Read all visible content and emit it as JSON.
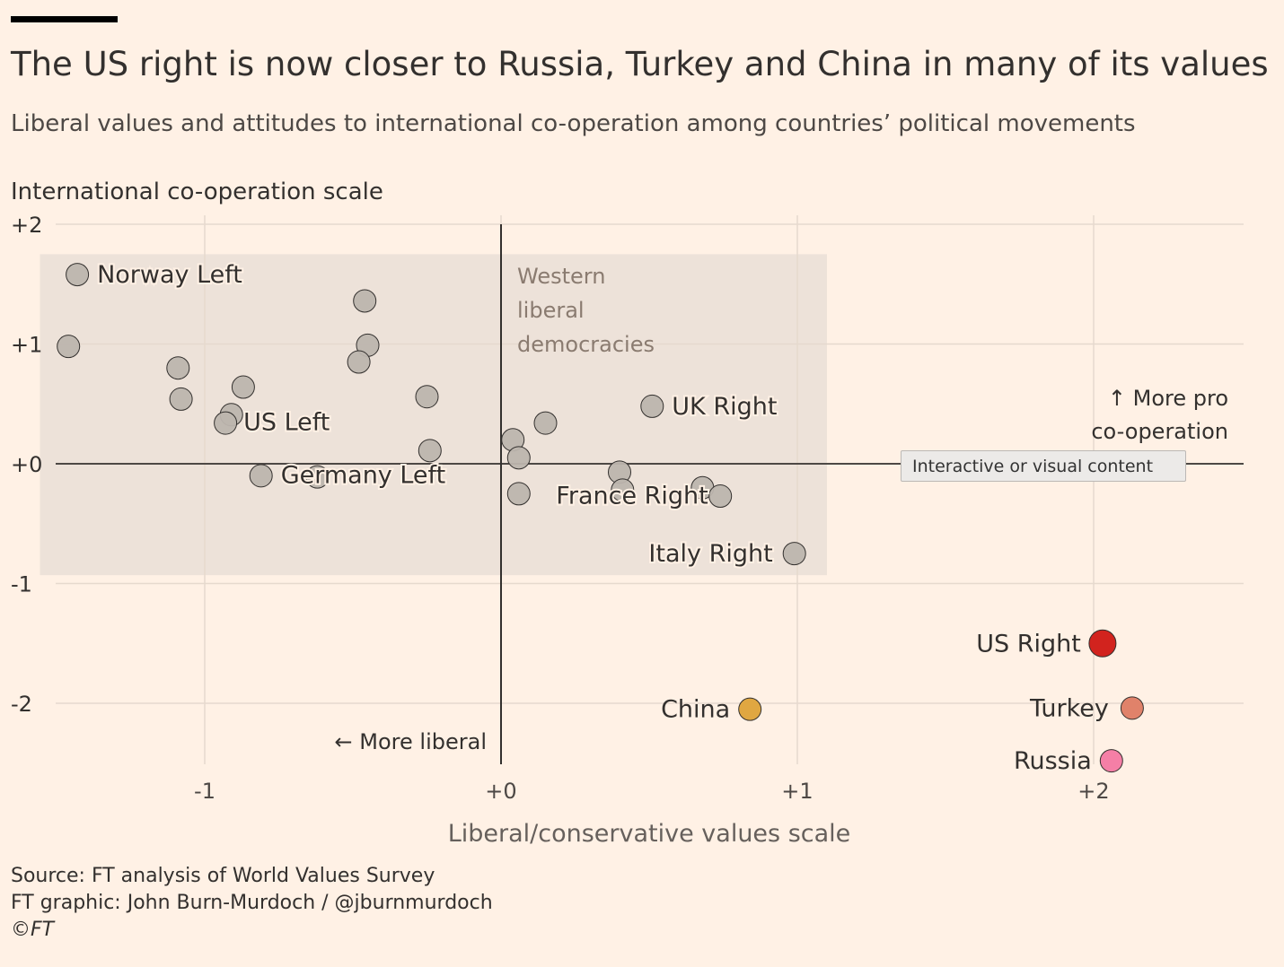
{
  "header": {
    "title": "The US right is now closer to Russia, Turkey and China in many of its values",
    "subtitle": "Liberal values and attitudes to international co-operation among countries’ political movements"
  },
  "tooltip": {
    "label": "Interactive or visual content"
  },
  "footer": {
    "source": "Source: FT analysis of World Values Survey",
    "graphic": "FT graphic: John Burn-Murdoch / @jburnmurdoch",
    "copyright": "©FT"
  },
  "chart_data": {
    "type": "scatter",
    "title": "The US right is now closer to Russia, Turkey and China in many of its values",
    "xlabel": "Liberal/conservative values scale",
    "ylabel": "International co-operation scale",
    "xlim": [
      -1.5,
      2.5
    ],
    "ylim": [
      -2.5,
      2
    ],
    "x_ticks": [
      {
        "value": -1,
        "label": "-1"
      },
      {
        "value": 0,
        "label": "+0"
      },
      {
        "value": 1,
        "label": "+1"
      },
      {
        "value": 2,
        "label": "+2"
      }
    ],
    "y_ticks": [
      {
        "value": 2,
        "label": "+2"
      },
      {
        "value": 1,
        "label": "+1"
      },
      {
        "value": 0,
        "label": "+0"
      },
      {
        "value": -1,
        "label": "-1"
      },
      {
        "value": -2,
        "label": "-2"
      }
    ],
    "grid": true,
    "colors": {
      "background": "#fff1e5",
      "grey_dot": "#bdb5ae",
      "us_right": "#d2231e",
      "turkey": "#e0826a",
      "russia": "#f57fa6",
      "china": "#e0a741",
      "shaded_region": "#ede2d9"
    },
    "region": {
      "label_lines": [
        "Western",
        "liberal",
        "democracies"
      ],
      "x_range": [
        -1.55,
        1.1
      ],
      "y_range": [
        -0.93,
        1.75
      ]
    },
    "annotations": {
      "more_liberal": "← More liberal",
      "more_coop_lines": [
        "↑ More pro",
        "co-operation"
      ]
    },
    "points": [
      {
        "x": -1.43,
        "y": 1.58,
        "label": "Norway Left",
        "color": "grey"
      },
      {
        "x": -1.46,
        "y": 0.98,
        "label": "",
        "color": "grey"
      },
      {
        "x": -1.09,
        "y": 0.8,
        "label": "",
        "color": "grey"
      },
      {
        "x": -1.08,
        "y": 0.54,
        "label": "",
        "color": "grey"
      },
      {
        "x": -0.87,
        "y": 0.64,
        "label": "",
        "color": "grey"
      },
      {
        "x": -0.91,
        "y": 0.41,
        "label": "",
        "color": "grey"
      },
      {
        "x": -0.93,
        "y": 0.34,
        "label": "US Left",
        "color": "grey"
      },
      {
        "x": -0.81,
        "y": -0.1,
        "label": "Germany Left",
        "color": "grey"
      },
      {
        "x": -0.62,
        "y": -0.11,
        "label": "",
        "color": "grey"
      },
      {
        "x": -0.46,
        "y": 1.36,
        "label": "",
        "color": "grey"
      },
      {
        "x": -0.45,
        "y": 0.99,
        "label": "",
        "color": "grey"
      },
      {
        "x": -0.48,
        "y": 0.85,
        "label": "",
        "color": "grey"
      },
      {
        "x": -0.25,
        "y": 0.56,
        "label": "",
        "color": "grey"
      },
      {
        "x": -0.24,
        "y": 0.11,
        "label": "",
        "color": "grey"
      },
      {
        "x": 0.04,
        "y": 0.2,
        "label": "",
        "color": "grey"
      },
      {
        "x": 0.06,
        "y": 0.05,
        "label": "",
        "color": "grey"
      },
      {
        "x": 0.06,
        "y": -0.25,
        "label": "",
        "color": "grey"
      },
      {
        "x": 0.15,
        "y": 0.34,
        "label": "",
        "color": "grey"
      },
      {
        "x": 0.4,
        "y": -0.07,
        "label": "",
        "color": "grey"
      },
      {
        "x": 0.41,
        "y": -0.22,
        "label": "France Right",
        "color": "grey"
      },
      {
        "x": 0.68,
        "y": -0.2,
        "label": "",
        "color": "grey"
      },
      {
        "x": 0.74,
        "y": -0.27,
        "label": "",
        "color": "grey"
      },
      {
        "x": 0.51,
        "y": 0.48,
        "label": "UK Right",
        "color": "grey"
      },
      {
        "x": 0.99,
        "y": -0.75,
        "label": "Italy Right",
        "color": "grey"
      },
      {
        "x": 0.84,
        "y": -2.05,
        "label": "China",
        "color": "china"
      },
      {
        "x": 2.03,
        "y": -1.5,
        "label": "US Right",
        "color": "us_right"
      },
      {
        "x": 2.13,
        "y": -2.04,
        "label": "Turkey",
        "color": "turkey"
      },
      {
        "x": 2.06,
        "y": -2.48,
        "label": "Russia",
        "color": "russia"
      }
    ]
  }
}
